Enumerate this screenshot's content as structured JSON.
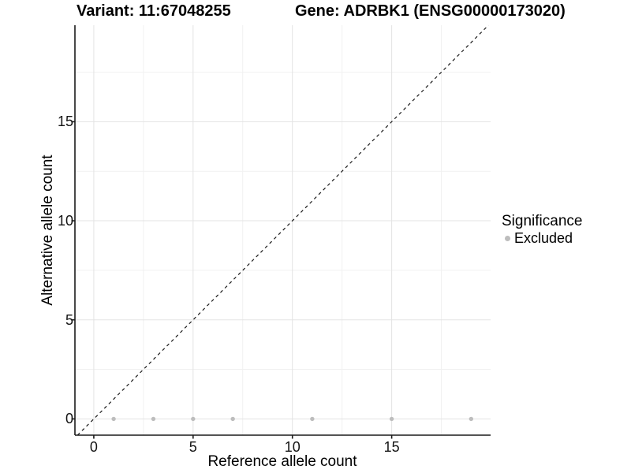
{
  "chart_data": {
    "type": "scatter",
    "title_left": "Variant: 11:67048255",
    "title_right": "Gene: ADRBK1 (ENSG00000173020)",
    "xlabel": "Reference allele count",
    "ylabel": "Alternative allele count",
    "xlim": [
      -0.95,
      19.98
    ],
    "ylim": [
      -0.82,
      19.87
    ],
    "xticks": [
      0,
      5,
      10,
      15
    ],
    "yticks": [
      0,
      5,
      10,
      15
    ],
    "minor_xticks": [
      2.5,
      7.5,
      12.5,
      17.5
    ],
    "minor_yticks": [
      2.5,
      7.5,
      12.5,
      17.5
    ],
    "grid": "major+minor",
    "series": [
      {
        "name": "Excluded",
        "color": "#bdbdbd",
        "points": [
          [
            1,
            0
          ],
          [
            3,
            0
          ],
          [
            5,
            0
          ],
          [
            7,
            0
          ],
          [
            11,
            0
          ],
          [
            15,
            0
          ],
          [
            19,
            0
          ]
        ]
      }
    ],
    "reference_line": {
      "type": "identity y=x",
      "style": "dashed",
      "color": "#1a1a1a"
    },
    "legend": {
      "title": "Significance",
      "position": "right",
      "items": [
        {
          "label": "Excluded",
          "color": "#bdbdbd"
        }
      ]
    }
  },
  "colors": {
    "background": "#ffffff",
    "grid_major": "#e3e3e3",
    "grid_minor": "#f1f1f1",
    "axis_line": "#1a1a1a",
    "point": "#bdbdbd"
  }
}
